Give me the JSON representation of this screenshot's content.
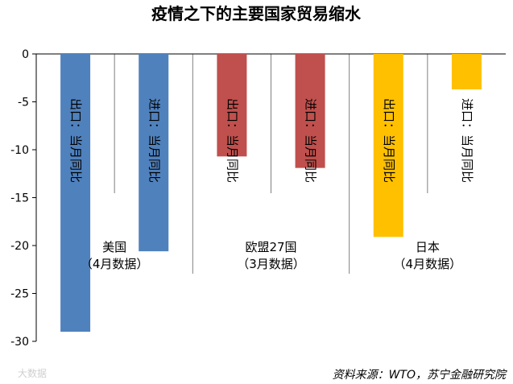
{
  "chart_data": {
    "type": "bar",
    "title": "疫情之下的主要国家贸易缩水",
    "ylim": [
      -30,
      0
    ],
    "yticks": [
      0,
      -5,
      -10,
      -15,
      -20,
      -25,
      -30
    ],
    "groups": [
      {
        "name": "美国",
        "note": "（4月数据）",
        "color": "#4f81bd",
        "bars": [
          {
            "label": "出口：当月同比",
            "value": -29.0
          },
          {
            "label": "进口：当月同比",
            "value": -20.6
          }
        ]
      },
      {
        "name": "欧盟27国",
        "note": "（3月数据）",
        "color": "#c0504d",
        "bars": [
          {
            "label": "出口：当月同比",
            "value": -10.7
          },
          {
            "label": "进口：当月同比",
            "value": -11.9
          }
        ]
      },
      {
        "name": "日本",
        "note": "（4月数据）",
        "color": "#ffc000",
        "bars": [
          {
            "label": "出口：当月同比",
            "value": -19.1
          },
          {
            "label": "进口：当月同比",
            "value": -3.7
          }
        ]
      }
    ],
    "source": "资料来源：WTO，苏宁金融研究院",
    "watermark": "大数据"
  }
}
